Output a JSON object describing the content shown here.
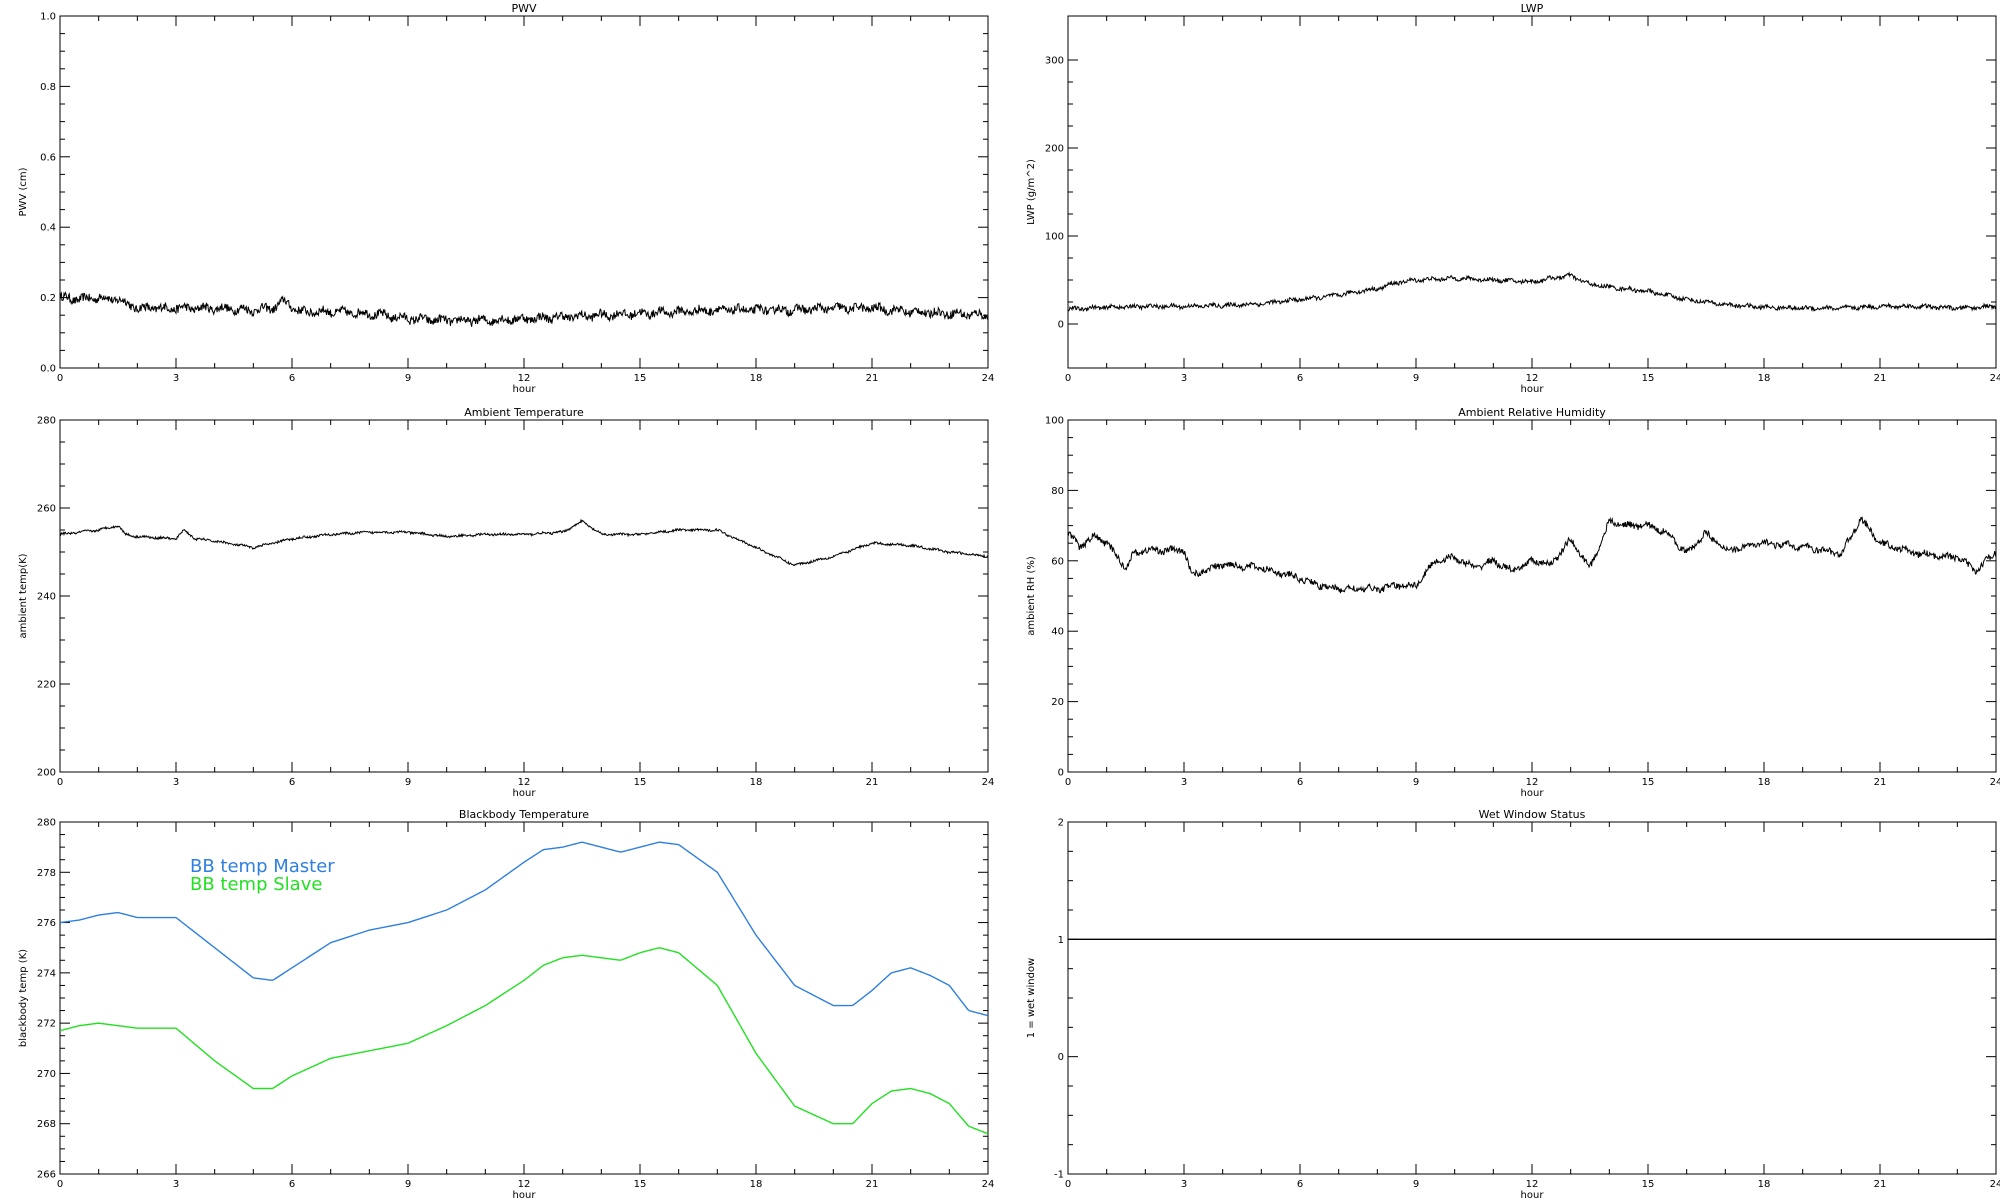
{
  "chart_data": [
    {
      "type": "line",
      "title": "PWV",
      "xlabel": "hour",
      "ylabel": "PWV (cm)",
      "xlim": [
        0,
        24
      ],
      "ylim": [
        0.0,
        1.0
      ],
      "xticks": [
        "0",
        "3",
        "6",
        "9",
        "12",
        "15",
        "18",
        "21",
        "24"
      ],
      "yticks": [
        "0.0",
        "0.2",
        "0.4",
        "0.6",
        "0.8",
        "1.0"
      ],
      "noise": 0.012,
      "series": [
        {
          "color": "#000000",
          "x": [
            0,
            0.5,
            1,
            1.5,
            2,
            3,
            4,
            5,
            5.5,
            5.8,
            6.2,
            7,
            8,
            9,
            10,
            11,
            12,
            13,
            14,
            15,
            16,
            17,
            18,
            19,
            20,
            21,
            22,
            23,
            24
          ],
          "y": [
            0.2,
            0.195,
            0.2,
            0.195,
            0.17,
            0.17,
            0.17,
            0.165,
            0.17,
            0.19,
            0.16,
            0.16,
            0.155,
            0.14,
            0.135,
            0.135,
            0.14,
            0.145,
            0.15,
            0.155,
            0.16,
            0.165,
            0.165,
            0.165,
            0.17,
            0.17,
            0.16,
            0.155,
            0.15
          ]
        }
      ]
    },
    {
      "type": "line",
      "title": "LWP",
      "xlabel": "hour",
      "ylabel": "LWP (g/m^2)",
      "xlim": [
        0,
        24
      ],
      "ylim": [
        -50,
        350
      ],
      "xticks": [
        "0",
        "3",
        "6",
        "9",
        "12",
        "15",
        "18",
        "21",
        "24"
      ],
      "yticks": [
        "0",
        "100",
        "200",
        "300"
      ],
      "noise": 2.2,
      "series": [
        {
          "color": "#000000",
          "x": [
            0,
            1,
            2,
            3,
            4,
            5,
            6,
            6.5,
            7,
            7.5,
            8,
            8.5,
            9,
            10,
            11,
            12,
            12.5,
            13,
            13.5,
            14,
            15,
            16,
            17,
            18,
            19,
            20,
            21,
            22,
            23,
            24
          ],
          "y": [
            17,
            19,
            20,
            20,
            21,
            23,
            28,
            30,
            33,
            37,
            40,
            47,
            50,
            52,
            50,
            48,
            52,
            55,
            45,
            42,
            37,
            28,
            22,
            19,
            18,
            18,
            20,
            20,
            18,
            20
          ]
        }
      ]
    },
    {
      "type": "line",
      "title": "Ambient Temperature",
      "xlabel": "hour",
      "ylabel": "ambient temp(K)",
      "xlim": [
        0,
        24
      ],
      "ylim": [
        200,
        280
      ],
      "xticks": [
        "0",
        "3",
        "6",
        "9",
        "12",
        "15",
        "18",
        "21",
        "24"
      ],
      "yticks": [
        "200",
        "220",
        "240",
        "260",
        "280"
      ],
      "noise": 0.25,
      "series": [
        {
          "color": "#000000",
          "x": [
            0,
            0.5,
            1,
            1.5,
            1.7,
            2,
            3,
            3.2,
            3.5,
            4,
            5,
            5.5,
            6,
            7,
            8,
            9,
            10,
            11,
            12,
            13,
            13.5,
            14,
            15,
            16,
            17,
            18,
            19,
            19.5,
            20,
            21,
            22,
            23,
            24
          ],
          "y": [
            254,
            254.5,
            255,
            256,
            254,
            253.5,
            253,
            255,
            253,
            252.5,
            251,
            252,
            253,
            254,
            254.5,
            254.5,
            253.5,
            254,
            254,
            254.5,
            257,
            254,
            254,
            255,
            255,
            251,
            247,
            248,
            249,
            252,
            251.5,
            250,
            249
          ]
        }
      ]
    },
    {
      "type": "line",
      "title": "Ambient Relative Humidity",
      "xlabel": "hour",
      "ylabel": "ambient RH (%)",
      "xlim": [
        0,
        24
      ],
      "ylim": [
        0,
        100
      ],
      "xticks": [
        "0",
        "3",
        "6",
        "9",
        "12",
        "15",
        "18",
        "21",
        "24"
      ],
      "yticks": [
        "0",
        "20",
        "40",
        "60",
        "80",
        "100"
      ],
      "noise": 0.9,
      "series": [
        {
          "color": "#000000",
          "x": [
            0,
            0.3,
            0.7,
            1,
            1.5,
            1.7,
            2,
            3,
            3.2,
            3.5,
            4,
            5,
            6,
            6.5,
            7,
            8,
            8.5,
            9,
            9.5,
            10,
            10.5,
            11,
            11.5,
            12,
            12.5,
            13,
            13.5,
            14,
            14.5,
            15,
            15.5,
            16,
            16.5,
            17,
            18,
            19,
            20,
            20.5,
            21,
            22,
            23,
            23.5,
            24
          ],
          "y": [
            68,
            64,
            67,
            65,
            58,
            62,
            63,
            63,
            56,
            57,
            59,
            58,
            55,
            53,
            52,
            52,
            53,
            53,
            60,
            61,
            58,
            60,
            57,
            60,
            59,
            66,
            58,
            71,
            70,
            70,
            68,
            62,
            68,
            63,
            65,
            64,
            62,
            72,
            65,
            62,
            61,
            57,
            63
          ]
        }
      ]
    },
    {
      "type": "line",
      "title": "Blackbody Temperature",
      "xlabel": "hour",
      "ylabel": "blackbody temp (K)",
      "xlim": [
        0,
        24
      ],
      "ylim": [
        266,
        280
      ],
      "xticks": [
        "0",
        "3",
        "6",
        "9",
        "12",
        "15",
        "18",
        "21",
        "24"
      ],
      "yticks": [
        "266",
        "268",
        "270",
        "272",
        "274",
        "276",
        "278",
        "280"
      ],
      "noise": 0,
      "legend": [
        {
          "label": "BB temp Master",
          "color": "#2f7fe0"
        },
        {
          "label": "BB temp Slave",
          "color": "#22e022"
        }
      ],
      "series": [
        {
          "color": "#2f7fe0",
          "x": [
            0,
            0.5,
            1,
            1.5,
            2,
            3,
            4,
            5,
            5.5,
            6,
            7,
            8,
            9,
            10,
            11,
            12,
            12.5,
            13,
            13.5,
            14,
            14.5,
            15,
            15.5,
            16,
            17,
            18,
            19,
            20,
            20.5,
            21,
            21.5,
            22,
            22.5,
            23,
            23.5,
            24
          ],
          "y": [
            276.0,
            276.1,
            276.3,
            276.4,
            276.2,
            276.2,
            275.0,
            273.8,
            273.7,
            274.2,
            275.2,
            275.7,
            276.0,
            276.5,
            277.3,
            278.4,
            278.9,
            279.0,
            279.2,
            279.0,
            278.8,
            279.0,
            279.2,
            279.1,
            278.0,
            275.5,
            273.5,
            272.7,
            272.7,
            273.3,
            274.0,
            274.2,
            273.9,
            273.5,
            272.5,
            272.3
          ]
        },
        {
          "color": "#22e022",
          "x": [
            0,
            0.5,
            1,
            1.5,
            2,
            3,
            4,
            5,
            5.5,
            6,
            7,
            8,
            9,
            10,
            11,
            12,
            12.5,
            13,
            13.5,
            14,
            14.5,
            15,
            15.5,
            16,
            17,
            18,
            19,
            20,
            20.5,
            21,
            21.5,
            22,
            22.5,
            23,
            23.5,
            24
          ],
          "y": [
            271.7,
            271.9,
            272.0,
            271.9,
            271.8,
            271.8,
            270.5,
            269.4,
            269.4,
            269.9,
            270.6,
            270.9,
            271.2,
            271.9,
            272.7,
            273.7,
            274.3,
            274.6,
            274.7,
            274.6,
            274.5,
            274.8,
            275.0,
            274.8,
            273.5,
            270.8,
            268.7,
            268.0,
            268.0,
            268.8,
            269.3,
            269.4,
            269.2,
            268.8,
            267.9,
            267.6
          ]
        }
      ]
    },
    {
      "type": "line",
      "title": "Wet Window Status",
      "xlabel": "hour",
      "ylabel": "1 = wet window",
      "xlim": [
        0,
        24
      ],
      "ylim": [
        -1,
        2
      ],
      "xticks": [
        "0",
        "3",
        "6",
        "9",
        "12",
        "15",
        "18",
        "21",
        "24"
      ],
      "yticks": [
        "-1",
        "0",
        "1",
        "2"
      ],
      "noise": 0,
      "series": [
        {
          "color": "#000000",
          "x": [
            0,
            24
          ],
          "y": [
            1,
            1
          ]
        }
      ]
    }
  ]
}
